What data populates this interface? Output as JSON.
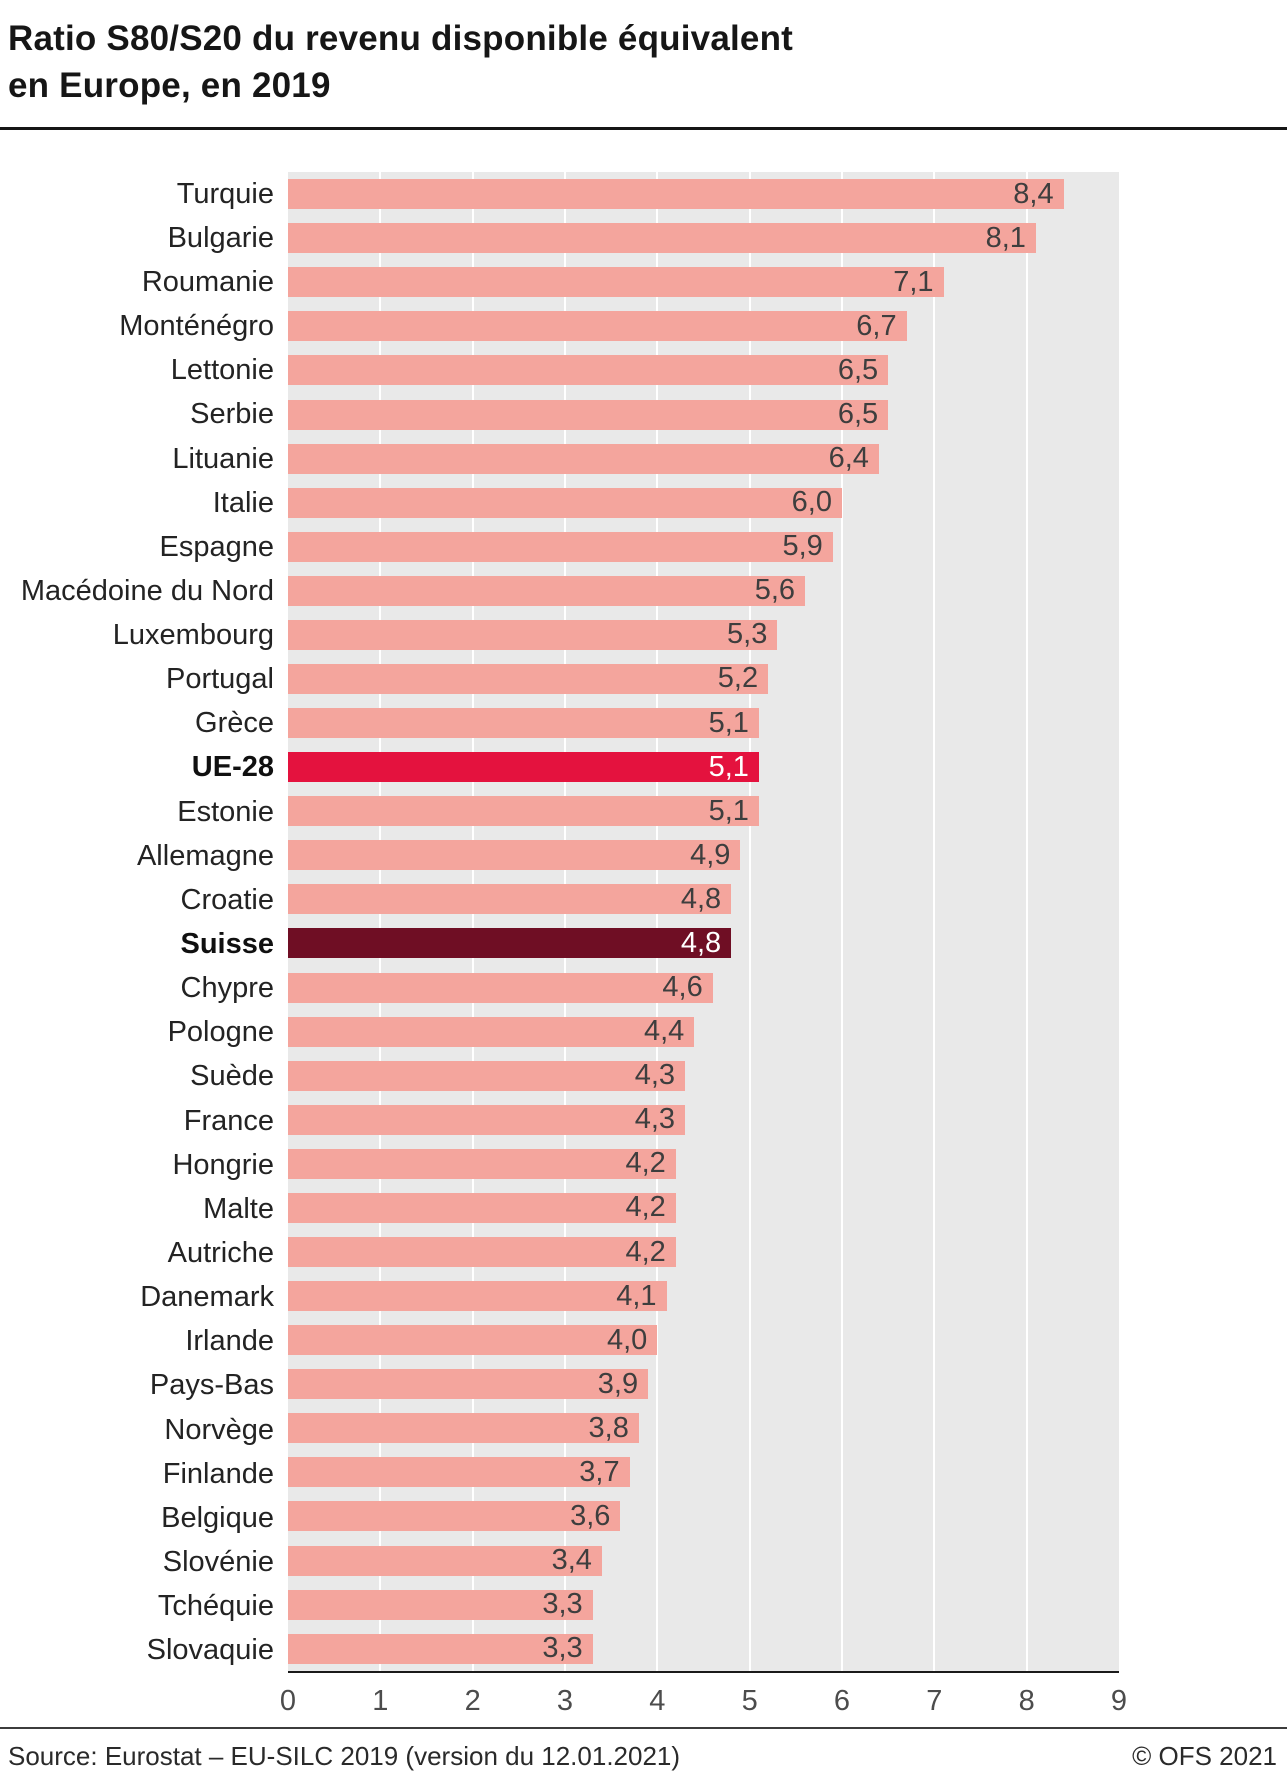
{
  "title": {
    "line1": "Ratio S80/S20 du revenu disponible équivalent",
    "line2": "en Europe, en 2019"
  },
  "footer": {
    "source": "Source: Eurostat – EU-SILC 2019 (version  du 12.01.2021)",
    "copyright": "© OFS 2021"
  },
  "chart_data": {
    "type": "bar",
    "orientation": "horizontal",
    "title": "Ratio S80/S20 du revenu disponible équivalent en Europe, en 2019",
    "xlabel": "",
    "ylabel": "",
    "xlim": [
      0,
      9
    ],
    "xticks": [
      0,
      1,
      2,
      3,
      4,
      5,
      6,
      7,
      8,
      9
    ],
    "grid": "vertical-white-lines",
    "legend": "none",
    "categories": [
      "Turquie",
      "Bulgarie",
      "Roumanie",
      "Monténégro",
      "Lettonie",
      "Serbie",
      "Lituanie",
      "Italie",
      "Espagne",
      "Macédoine du Nord",
      "Luxembourg",
      "Portugal",
      "Grèce",
      "UE-28",
      "Estonie",
      "Allemagne",
      "Croatie",
      "Suisse",
      "Chypre",
      "Pologne",
      "Suède",
      "France",
      "Hongrie",
      "Malte",
      "Autriche",
      "Danemark",
      "Irlande",
      "Pays-Bas",
      "Norvège",
      "Finlande",
      "Belgique",
      "Slovénie",
      "Tchéquie",
      "Slovaquie"
    ],
    "values": [
      8.4,
      8.1,
      7.1,
      6.7,
      6.5,
      6.5,
      6.4,
      6.0,
      5.9,
      5.6,
      5.3,
      5.2,
      5.1,
      5.1,
      5.1,
      4.9,
      4.8,
      4.8,
      4.6,
      4.4,
      4.3,
      4.3,
      4.2,
      4.2,
      4.2,
      4.1,
      4.0,
      3.9,
      3.8,
      3.7,
      3.6,
      3.4,
      3.3,
      3.3
    ],
    "decimal_separator": ",",
    "colors": {
      "default_bar": "#f4a59d",
      "plot_background": "#e9e9e9",
      "value_label": "#3e3e3e",
      "gridline": "#ffffff"
    },
    "highlights": {
      "UE-28": {
        "bar_color": "#e4123e",
        "value_color": "#ffffff"
      },
      "Suisse": {
        "bar_color": "#6f0e24",
        "value_color": "#ffffff"
      }
    }
  }
}
